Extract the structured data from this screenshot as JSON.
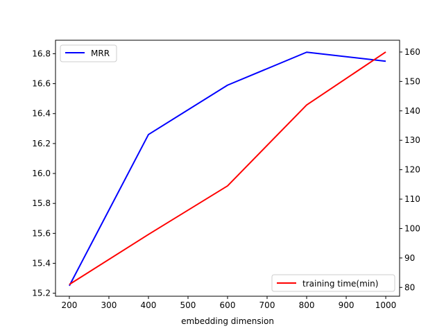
{
  "chart_data": {
    "type": "line",
    "xlabel": "embedding dimension",
    "x": [
      200,
      400,
      600,
      800,
      1000
    ],
    "xlim": [
      165,
      1035
    ],
    "xticks": [
      200,
      300,
      400,
      500,
      600,
      700,
      800,
      900,
      1000
    ],
    "y_left": {
      "label": "",
      "ylim": [
        15.18,
        16.89
      ],
      "ticks": [
        "15.2",
        "15.4",
        "15.6",
        "15.8",
        "16.0",
        "16.2",
        "16.4",
        "16.6",
        "16.8"
      ]
    },
    "y_right": {
      "label": "",
      "ylim": [
        77,
        164
      ],
      "ticks": [
        80,
        90,
        100,
        110,
        120,
        130,
        140,
        150,
        160
      ]
    },
    "series": [
      {
        "name": "MRR",
        "axis": "left",
        "color": "#0000ff",
        "values": [
          15.25,
          16.26,
          16.59,
          16.81,
          16.75
        ]
      },
      {
        "name": "training time(min)",
        "axis": "right",
        "color": "#ff0000",
        "values": [
          81,
          98,
          114.5,
          142,
          160
        ]
      }
    ],
    "legends": [
      {
        "series": "MRR",
        "position": "upper-left"
      },
      {
        "series": "training time(min)",
        "position": "lower-right"
      }
    ],
    "grid": false
  }
}
